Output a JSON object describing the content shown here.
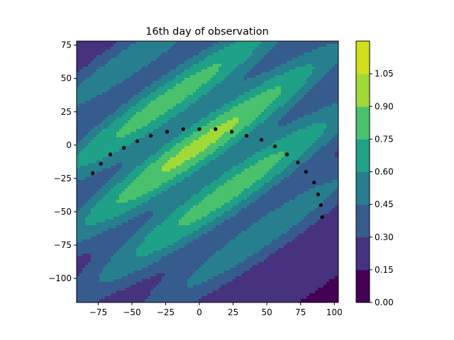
{
  "chart_data": {
    "type": "contour",
    "title": "16th day of observation",
    "xlabel": "",
    "ylabel": "",
    "xlim": [
      -91,
      103
    ],
    "ylim": [
      -118,
      78
    ],
    "xticks": [
      -75,
      -50,
      -25,
      0,
      25,
      50,
      75,
      100
    ],
    "yticks": [
      75,
      50,
      25,
      0,
      -25,
      -50,
      -75,
      -100
    ],
    "grid": false,
    "colorbar": {
      "levels": [
        0.0,
        0.15,
        0.3,
        0.45,
        0.6,
        0.75,
        0.9,
        1.05
      ],
      "tick_labels": [
        "0.00",
        "0.15",
        "0.30",
        "0.45",
        "0.60",
        "0.75",
        "0.90",
        "1.05"
      ],
      "colors": [
        "#440154",
        "#46327e",
        "#365c8d",
        "#277f8e",
        "#1fa187",
        "#4ac16d",
        "#a0da39",
        "#d0e11c"
      ]
    },
    "field": {
      "description_hidden": true,
      "band_angle_deg": 35,
      "peak": 0.93,
      "wave_period": 42
    },
    "points": [
      {
        "x": -79,
        "y": -21
      },
      {
        "x": -73,
        "y": -14
      },
      {
        "x": -66,
        "y": -7
      },
      {
        "x": -56,
        "y": -2
      },
      {
        "x": -46,
        "y": 3
      },
      {
        "x": -36,
        "y": 7
      },
      {
        "x": -24,
        "y": 10
      },
      {
        "x": -12,
        "y": 12
      },
      {
        "x": 0,
        "y": 12
      },
      {
        "x": 12,
        "y": 12
      },
      {
        "x": 24,
        "y": 10
      },
      {
        "x": 35,
        "y": 7
      },
      {
        "x": 46,
        "y": 4
      },
      {
        "x": 56,
        "y": -1
      },
      {
        "x": 65,
        "y": -7
      },
      {
        "x": 73,
        "y": -13
      },
      {
        "x": 79,
        "y": -20
      },
      {
        "x": 85,
        "y": -28
      },
      {
        "x": 88,
        "y": -37
      },
      {
        "x": 90,
        "y": -45
      },
      {
        "x": 91,
        "y": -54
      }
    ]
  }
}
